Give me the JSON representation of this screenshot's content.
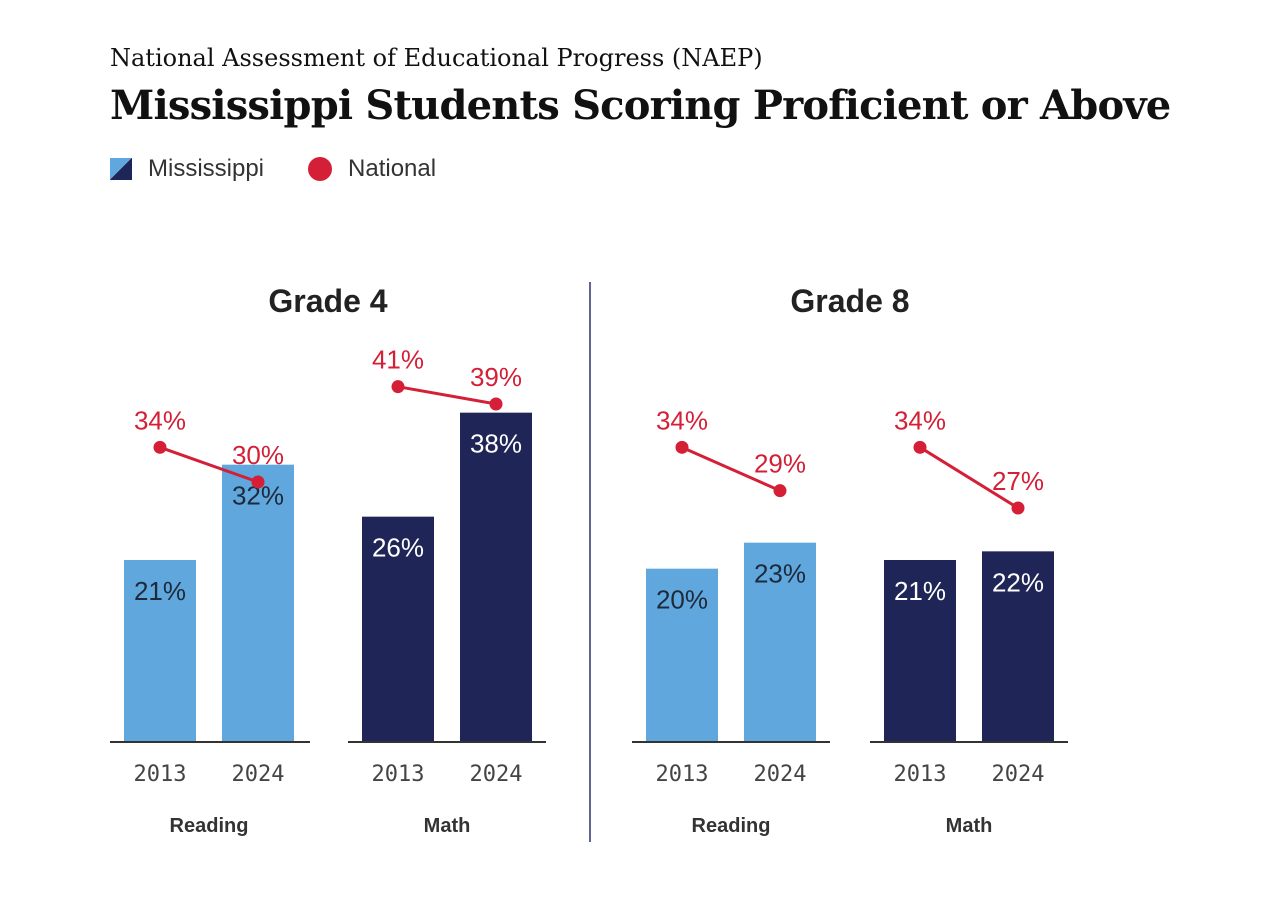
{
  "header": {
    "subtitle": "National Assessment of Educational Progress (NAEP)",
    "title": "Mississippi Students Scoring Proficient or Above"
  },
  "legend": {
    "mississippi": "Mississippi",
    "national": "National"
  },
  "colors": {
    "reading": "#5fa7dd",
    "math": "#1f2657",
    "national": "#d41f37"
  },
  "chart_data": {
    "type": "bar",
    "unit": "%",
    "ylim": [
      0,
      45
    ],
    "panels": [
      {
        "title": "Grade 4",
        "groups": [
          {
            "label": "Reading",
            "years": [
              "2013",
              "2024"
            ],
            "mississippi": [
              21,
              32
            ],
            "national": [
              34,
              30
            ],
            "labels_mississippi": [
              "21%",
              "32%"
            ],
            "labels_national": [
              "34%",
              "30%"
            ]
          },
          {
            "label": "Math",
            "years": [
              "2013",
              "2024"
            ],
            "mississippi": [
              26,
              38
            ],
            "national": [
              41,
              39
            ],
            "labels_mississippi": [
              "26%",
              "38%"
            ],
            "labels_national": [
              "41%",
              "39%"
            ]
          }
        ]
      },
      {
        "title": "Grade 8",
        "groups": [
          {
            "label": "Reading",
            "years": [
              "2013",
              "2024"
            ],
            "mississippi": [
              20,
              23
            ],
            "national": [
              34,
              29
            ],
            "labels_mississippi": [
              "20%",
              "23%"
            ],
            "labels_national": [
              "34%",
              "29%"
            ]
          },
          {
            "label": "Math",
            "years": [
              "2013",
              "2024"
            ],
            "mississippi": [
              21,
              22
            ],
            "national": [
              34,
              27
            ],
            "labels_mississippi": [
              "21%",
              "22%"
            ],
            "labels_national": [
              "34%",
              "27%"
            ]
          }
        ]
      }
    ]
  }
}
